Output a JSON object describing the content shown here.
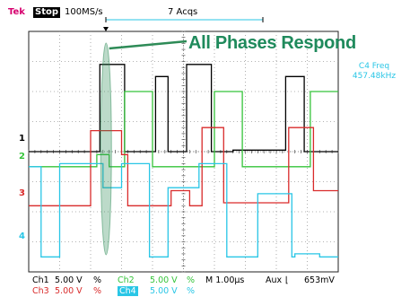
{
  "header": {
    "brand": "Tek",
    "state": "Stop",
    "sample_rate": "100MS/s",
    "acquisitions": "7 Acqs"
  },
  "annotation": "All Phases Respond",
  "measurement": {
    "label": "C4 Freq",
    "value": "457.48kHz"
  },
  "channel_markers": {
    "ch1": "1",
    "ch2": "2",
    "ch3": "3",
    "ch4": "4"
  },
  "footer": {
    "ch1_label": "Ch1",
    "ch1_scale": "5.00 V",
    "ch1_sym": "%",
    "ch2_label": "Ch2",
    "ch2_scale": "5.00 V",
    "ch2_sym": "%",
    "timebase": "M 1.00µs",
    "trigger_source": "Aux",
    "trigger_slope": "⌊",
    "trigger_level": "653mV",
    "ch3_label": "Ch3",
    "ch3_scale": "5.00 V",
    "ch3_sym": "%",
    "ch4_label": "Ch4",
    "ch4_scale": "5.00 V",
    "ch4_sym": "%"
  },
  "colors": {
    "ch1": "#000000",
    "ch2": "#35c43a",
    "ch3": "#d92b2b",
    "ch4": "#29c6e6",
    "annotation": "#1f8a5c",
    "highlight": "#2e8b57"
  },
  "chart_data": {
    "type": "line",
    "title": "",
    "xlabel": "",
    "ylabel": "",
    "x_unit": "µs",
    "xlim": [
      0,
      10
    ],
    "ylim": [
      -4,
      4
    ],
    "grid": true,
    "series": [
      {
        "name": "Ch1",
        "color": "#000000",
        "points": [
          [
            0,
            0
          ],
          [
            2.3,
            0
          ],
          [
            2.3,
            2.9
          ],
          [
            3.1,
            2.9
          ],
          [
            3.1,
            0
          ],
          [
            4.1,
            0
          ],
          [
            4.1,
            2.5
          ],
          [
            4.5,
            2.5
          ],
          [
            4.5,
            0
          ],
          [
            5.1,
            0
          ],
          [
            5.1,
            2.9
          ],
          [
            5.9,
            2.9
          ],
          [
            5.9,
            0
          ],
          [
            6.6,
            0
          ],
          [
            6.6,
            0.05
          ],
          [
            8.3,
            0.05
          ],
          [
            8.3,
            2.5
          ],
          [
            8.9,
            2.5
          ],
          [
            8.9,
            0
          ],
          [
            10,
            0
          ]
        ]
      },
      {
        "name": "Ch2",
        "color": "#35c43a",
        "points": [
          [
            0,
            -0.5
          ],
          [
            2.2,
            -0.5
          ],
          [
            2.2,
            -0.1
          ],
          [
            2.6,
            -0.1
          ],
          [
            2.6,
            -0.5
          ],
          [
            3.1,
            -0.5
          ],
          [
            3.1,
            2.0
          ],
          [
            4.0,
            2.0
          ],
          [
            4.0,
            -0.5
          ],
          [
            6.0,
            -0.5
          ],
          [
            6.0,
            2.0
          ],
          [
            6.9,
            2.0
          ],
          [
            6.9,
            -0.5
          ],
          [
            9.1,
            -0.5
          ],
          [
            9.1,
            2.0
          ],
          [
            10,
            2.0
          ]
        ]
      },
      {
        "name": "Ch3",
        "color": "#d92b2b",
        "points": [
          [
            0,
            -1.8
          ],
          [
            2.0,
            -1.8
          ],
          [
            2.0,
            0.7
          ],
          [
            3.0,
            0.7
          ],
          [
            3.0,
            -0.1
          ],
          [
            3.2,
            -0.1
          ],
          [
            3.2,
            -1.8
          ],
          [
            4.6,
            -1.8
          ],
          [
            4.6,
            -1.3
          ],
          [
            5.2,
            -1.3
          ],
          [
            5.2,
            -1.8
          ],
          [
            5.6,
            -1.8
          ],
          [
            5.6,
            0.8
          ],
          [
            6.3,
            0.8
          ],
          [
            6.3,
            -1.7
          ],
          [
            8.4,
            -1.7
          ],
          [
            8.4,
            0.8
          ],
          [
            9.2,
            0.8
          ],
          [
            9.2,
            -1.3
          ],
          [
            10,
            -1.3
          ]
        ]
      },
      {
        "name": "Ch4",
        "color": "#29c6e6",
        "points": [
          [
            0,
            -0.5
          ],
          [
            0.4,
            -0.5
          ],
          [
            0.4,
            -3.5
          ],
          [
            1.0,
            -3.5
          ],
          [
            1.0,
            -0.4
          ],
          [
            2.4,
            -0.4
          ],
          [
            2.4,
            -1.2
          ],
          [
            3.0,
            -1.2
          ],
          [
            3.0,
            -0.4
          ],
          [
            3.9,
            -0.4
          ],
          [
            3.9,
            -3.5
          ],
          [
            4.5,
            -3.5
          ],
          [
            4.5,
            -1.2
          ],
          [
            5.5,
            -1.2
          ],
          [
            5.5,
            -0.4
          ],
          [
            6.4,
            -0.4
          ],
          [
            6.4,
            -3.5
          ],
          [
            7.4,
            -3.5
          ],
          [
            7.4,
            -1.4
          ],
          [
            8.5,
            -1.4
          ],
          [
            8.5,
            -3.5
          ],
          [
            8.6,
            -3.5
          ],
          [
            8.6,
            -3.4
          ],
          [
            9.4,
            -3.4
          ],
          [
            9.4,
            -3.5
          ],
          [
            10,
            -3.5
          ]
        ]
      }
    ]
  }
}
